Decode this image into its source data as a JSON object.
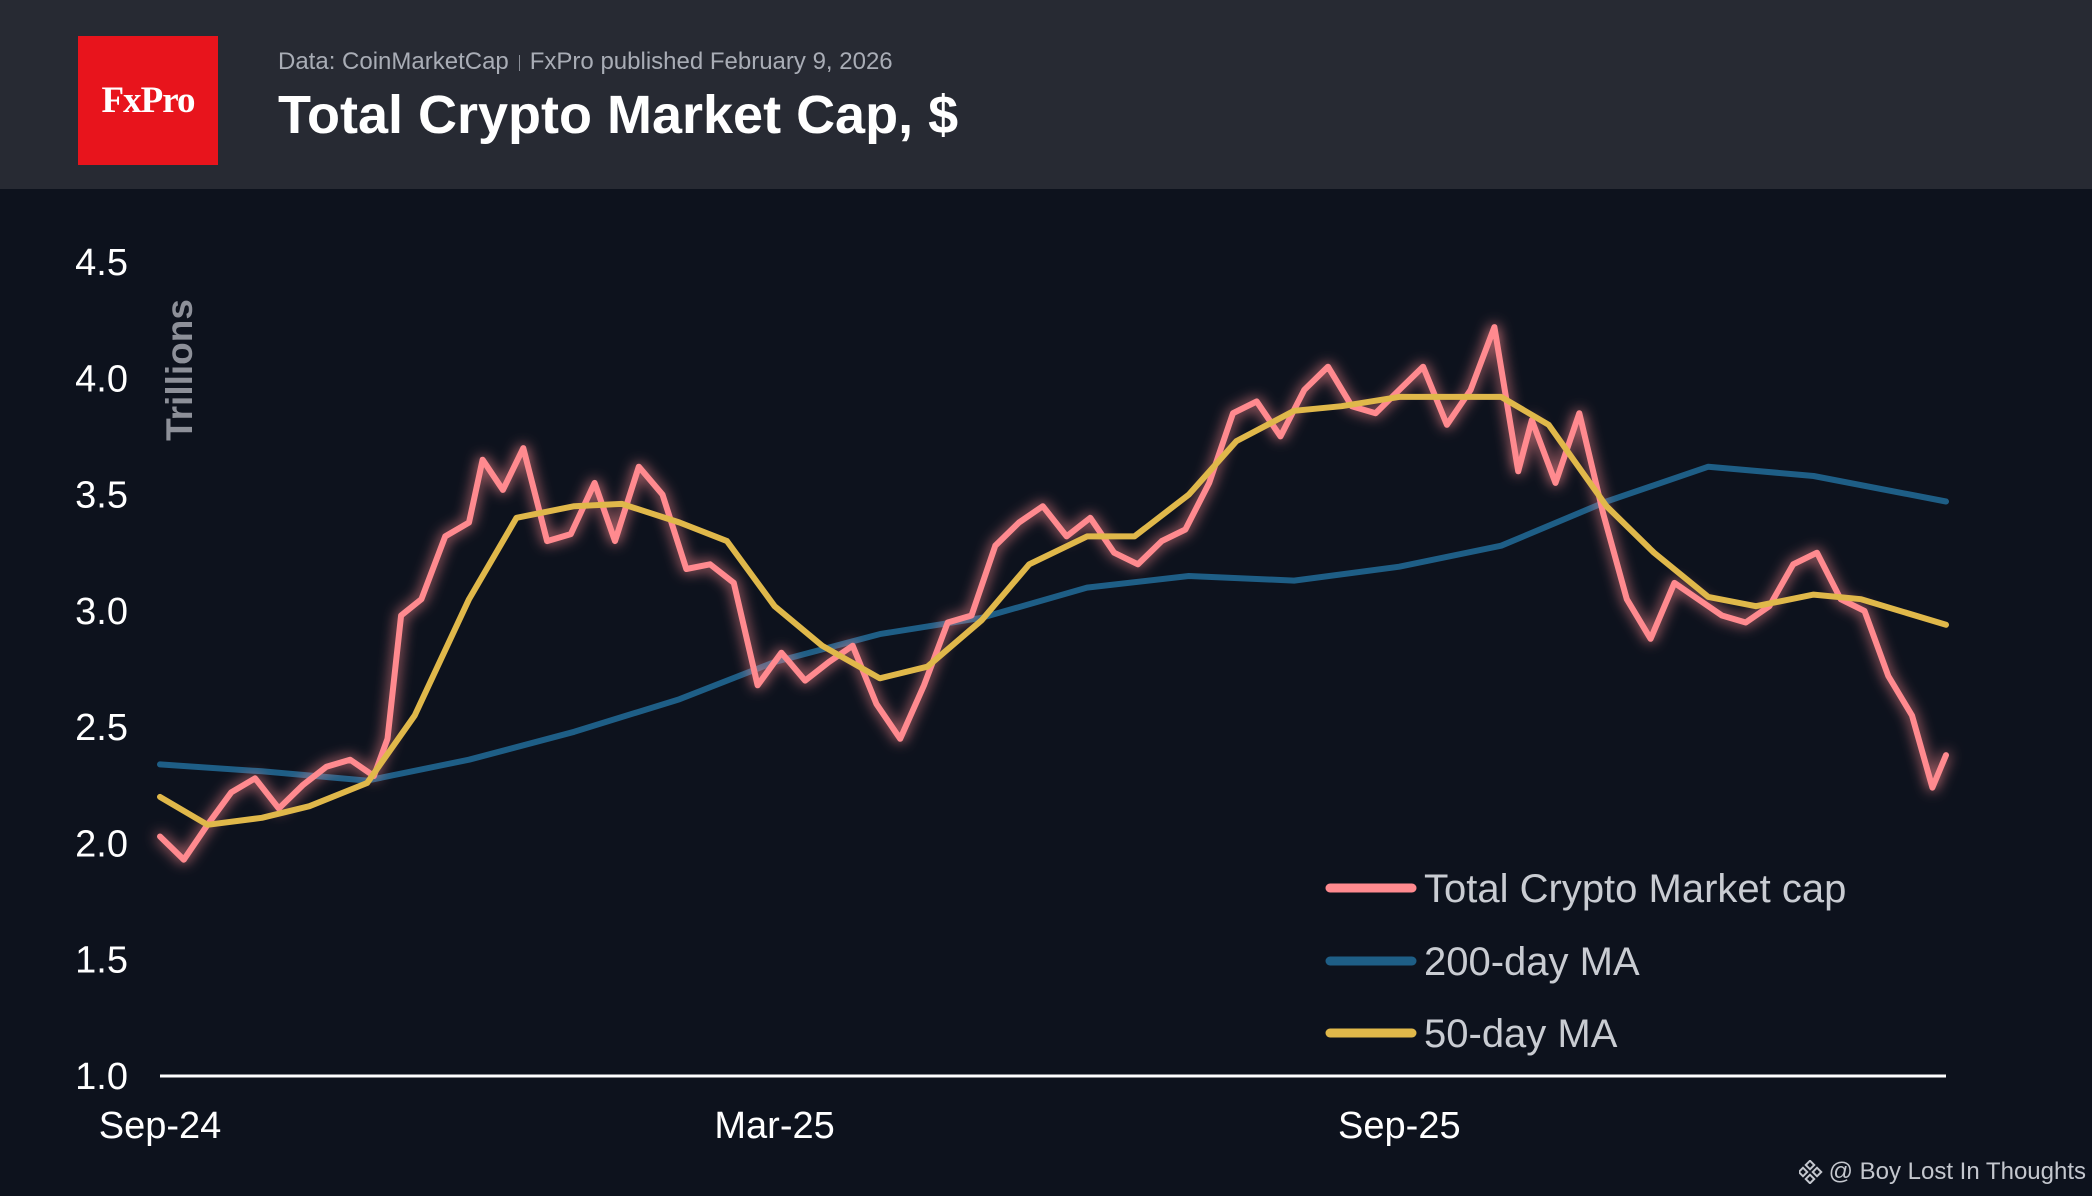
{
  "header": {
    "logo": "FxPro",
    "source": "Data: CoinMarketCap",
    "publisher": "FxPro published February 9, 2026",
    "title": "Total Crypto Market Cap, $"
  },
  "credit": "@ Boy Lost In Thoughts",
  "colors": {
    "background": "#0d121d",
    "header": "#272a33",
    "logo": "#e8141c",
    "market_cap": "#ff8a8f",
    "ma200": "#1e5e86",
    "ma50": "#e0b84a"
  },
  "chart_data": {
    "type": "line",
    "ylabel": "Trillions",
    "ylim": [
      1.0,
      4.5
    ],
    "yticks": [
      "1.0",
      "1.5",
      "2.0",
      "2.5",
      "3.0",
      "3.5",
      "4.0",
      "4.5"
    ],
    "xticks": [
      "Sep-24",
      "Mar-25",
      "Sep-25"
    ],
    "xtick_dates": [
      "2024-09-01",
      "2025-03-01",
      "2025-09-01"
    ],
    "xlim": [
      "2024-09-01",
      "2026-02-09"
    ],
    "grid": false,
    "legend_position": "bottom-right",
    "series": [
      {
        "name": "Total Crypto Market cap",
        "x": [
          "2024-09-01",
          "2024-09-08",
          "2024-09-15",
          "2024-09-22",
          "2024-09-29",
          "2024-10-06",
          "2024-10-13",
          "2024-10-20",
          "2024-10-27",
          "2024-11-03",
          "2024-11-07",
          "2024-11-11",
          "2024-11-17",
          "2024-11-24",
          "2024-12-01",
          "2024-12-05",
          "2024-12-11",
          "2024-12-17",
          "2024-12-24",
          "2024-12-31",
          "2025-01-07",
          "2025-01-13",
          "2025-01-20",
          "2025-01-27",
          "2025-02-03",
          "2025-02-10",
          "2025-02-17",
          "2025-02-24",
          "2025-03-03",
          "2025-03-10",
          "2025-03-17",
          "2025-03-24",
          "2025-03-31",
          "2025-04-07",
          "2025-04-14",
          "2025-04-21",
          "2025-04-28",
          "2025-05-05",
          "2025-05-12",
          "2025-05-19",
          "2025-05-26",
          "2025-06-02",
          "2025-06-09",
          "2025-06-16",
          "2025-06-23",
          "2025-06-30",
          "2025-07-07",
          "2025-07-14",
          "2025-07-21",
          "2025-07-28",
          "2025-08-04",
          "2025-08-11",
          "2025-08-18",
          "2025-08-25",
          "2025-09-01",
          "2025-09-08",
          "2025-09-15",
          "2025-09-22",
          "2025-09-29",
          "2025-10-06",
          "2025-10-10",
          "2025-10-17",
          "2025-10-24",
          "2025-10-31",
          "2025-11-07",
          "2025-11-14",
          "2025-11-21",
          "2025-11-28",
          "2025-12-05",
          "2025-12-12",
          "2025-12-19",
          "2025-12-26",
          "2026-01-02",
          "2026-01-09",
          "2026-01-16",
          "2026-01-23",
          "2026-01-30",
          "2026-02-05",
          "2026-02-09"
        ],
        "values": [
          2.03,
          1.93,
          2.08,
          2.22,
          2.28,
          2.15,
          2.25,
          2.33,
          2.36,
          2.29,
          2.45,
          2.98,
          3.05,
          3.32,
          3.38,
          3.65,
          3.52,
          3.7,
          3.3,
          3.33,
          3.55,
          3.3,
          3.62,
          3.5,
          3.18,
          3.2,
          3.12,
          2.68,
          2.82,
          2.7,
          2.78,
          2.85,
          2.6,
          2.45,
          2.68,
          2.95,
          2.98,
          3.28,
          3.38,
          3.45,
          3.32,
          3.4,
          3.25,
          3.2,
          3.3,
          3.35,
          3.55,
          3.85,
          3.9,
          3.75,
          3.95,
          4.05,
          3.88,
          3.85,
          3.95,
          4.05,
          3.8,
          3.95,
          4.22,
          3.6,
          3.82,
          3.55,
          3.85,
          3.42,
          3.05,
          2.88,
          3.12,
          3.05,
          2.98,
          2.95,
          3.02,
          3.2,
          3.25,
          3.05,
          3.0,
          2.72,
          2.55,
          2.24,
          2.38
        ]
      },
      {
        "name": "200-day MA",
        "x": [
          "2024-09-01",
          "2024-10-01",
          "2024-11-01",
          "2024-12-01",
          "2025-01-01",
          "2025-02-01",
          "2025-03-01",
          "2025-04-01",
          "2025-05-01",
          "2025-06-01",
          "2025-07-01",
          "2025-08-01",
          "2025-09-01",
          "2025-10-01",
          "2025-11-01",
          "2025-12-01",
          "2026-01-01",
          "2026-02-09"
        ],
        "values": [
          2.34,
          2.31,
          2.27,
          2.36,
          2.48,
          2.62,
          2.78,
          2.9,
          2.97,
          3.1,
          3.15,
          3.13,
          3.19,
          3.28,
          3.47,
          3.62,
          3.58,
          3.47
        ]
      },
      {
        "name": "50-day MA",
        "x": [
          "2024-09-01",
          "2024-09-15",
          "2024-10-01",
          "2024-10-15",
          "2024-11-01",
          "2024-11-15",
          "2024-12-01",
          "2024-12-15",
          "2025-01-01",
          "2025-01-15",
          "2025-02-01",
          "2025-02-15",
          "2025-03-01",
          "2025-03-15",
          "2025-04-01",
          "2025-04-15",
          "2025-05-01",
          "2025-05-15",
          "2025-06-01",
          "2025-06-15",
          "2025-07-01",
          "2025-07-15",
          "2025-08-01",
          "2025-08-15",
          "2025-09-01",
          "2025-09-15",
          "2025-10-01",
          "2025-10-15",
          "2025-11-01",
          "2025-11-15",
          "2025-12-01",
          "2025-12-15",
          "2026-01-01",
          "2026-01-15",
          "2026-02-09"
        ],
        "values": [
          2.2,
          2.08,
          2.11,
          2.16,
          2.26,
          2.55,
          3.05,
          3.4,
          3.45,
          3.46,
          3.38,
          3.3,
          3.02,
          2.85,
          2.71,
          2.76,
          2.96,
          3.2,
          3.32,
          3.32,
          3.5,
          3.73,
          3.86,
          3.88,
          3.92,
          3.92,
          3.92,
          3.8,
          3.45,
          3.25,
          3.06,
          3.02,
          3.07,
          3.05,
          2.94
        ]
      }
    ]
  }
}
